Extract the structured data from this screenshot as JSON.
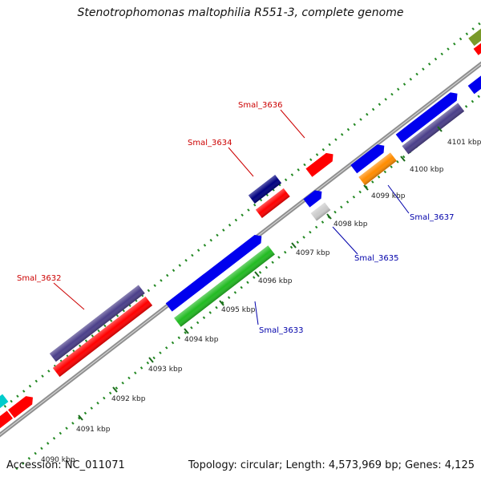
{
  "title": "Stenotrophomonas maltophilia R551-3, complete genome",
  "footer": {
    "accession": "Accession: NC_011071",
    "summary": "Topology: circular; Length: 4,573,969 bp; Genes: 4,125"
  },
  "ticks": [
    "4090 kbp",
    "4091 kbp",
    "4092 kbp",
    "4093 kbp",
    "4094 kbp",
    "4095 kbp",
    "4096 kbp",
    "4097 kbp",
    "4098 kbp",
    "4099 kbp",
    "4100 kbp",
    "4101 kbp"
  ],
  "gene_labels": [
    {
      "text": "Smal_3632",
      "color": "#cc0000"
    },
    {
      "text": "Smal_3633",
      "color": "#0000aa"
    },
    {
      "text": "Smal_3634",
      "color": "#cc0000"
    },
    {
      "text": "Smal_3635",
      "color": "#0000aa"
    },
    {
      "text": "Smal_3636",
      "color": "#cc0000"
    },
    {
      "text": "Smal_3637",
      "color": "#0000aa"
    }
  ],
  "colors": {
    "red": "#ff0000",
    "blue": "#0000ee",
    "navy": "#000080",
    "slate": "#4b3f8a",
    "green": "#22bb22",
    "orange": "#ff8c00",
    "grey": "#cccccc",
    "olive": "#7a9a2a",
    "cyan": "#00cccc",
    "backbone": "#909090",
    "dots": "#228822"
  }
}
